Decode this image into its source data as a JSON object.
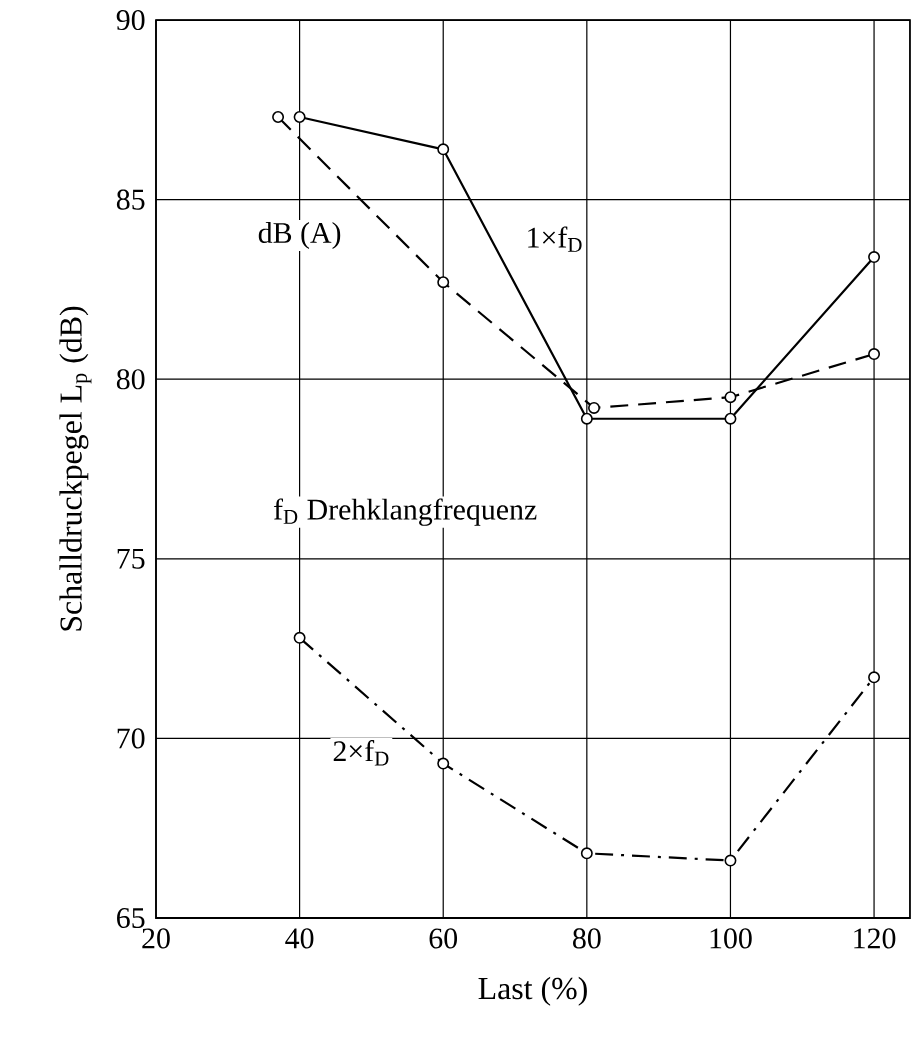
{
  "chart_data": {
    "type": "line",
    "xlabel": "Last (%)",
    "ylabel": "Schalldruckpegel L$_{p}$ (dB)",
    "xlim": [
      20,
      125
    ],
    "xticks": [
      20,
      40,
      60,
      80,
      100,
      120
    ],
    "ylim": [
      65,
      90
    ],
    "yticks": [
      65,
      70,
      75,
      80,
      85,
      90
    ],
    "grid": true,
    "marker": "circle",
    "annotations": [
      "f$_{D}$ Drehklangfrequenz"
    ],
    "series": [
      {
        "name": "1×f$_{D}$",
        "color": "#000000",
        "line_style": "solid",
        "x": [
          40,
          60,
          80,
          100,
          120
        ],
        "values": [
          87.3,
          86.4,
          78.9,
          78.9,
          83.4
        ]
      },
      {
        "name": "dB (A)",
        "color": "#000000",
        "line_style": "dashed",
        "x": [
          37,
          60,
          81,
          100,
          120
        ],
        "values": [
          87.3,
          82.7,
          79.2,
          79.5,
          80.7
        ]
      },
      {
        "name": "2×f$_{D}$",
        "color": "#000000",
        "line_style": "dashdot",
        "x": [
          40,
          60,
          80,
          100,
          120
        ],
        "values": [
          72.8,
          69.3,
          66.8,
          66.6,
          71.7
        ]
      }
    ]
  }
}
